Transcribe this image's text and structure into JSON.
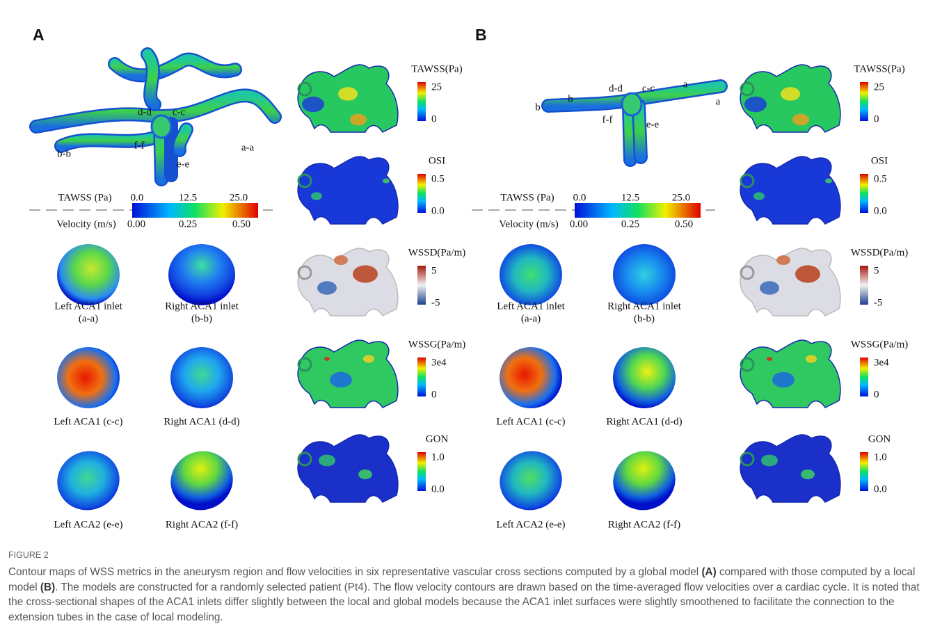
{
  "panels": [
    {
      "label": "A",
      "vessel_labels": [
        "d-d",
        "c-c",
        "b-b",
        "a-a",
        "f-f",
        "e-e"
      ],
      "colorbar": {
        "tawss_label": "TAWSS (Pa)",
        "tawss_ticks": [
          "0.0",
          "12.5",
          "25.0"
        ],
        "velocity_label": "Velocity (m/s)",
        "velocity_ticks": [
          "0.00",
          "0.25",
          "0.50"
        ]
      },
      "cross_sections": [
        {
          "lines": [
            "Left ACA1 inlet",
            "(a-a)"
          ]
        },
        {
          "lines": [
            "Right ACA1 inlet",
            "(b-b)"
          ]
        },
        {
          "lines": [
            "Left ACA1 (c-c)"
          ]
        },
        {
          "lines": [
            "Right ACA1 (d-d)"
          ]
        },
        {
          "lines": [
            "Left ACA2 (e-e)"
          ]
        },
        {
          "lines": [
            "Right ACA2 (f-f)"
          ]
        }
      ],
      "metrics": [
        {
          "name": "TAWSS(Pa)",
          "max": "25",
          "min": "0"
        },
        {
          "name": "OSI",
          "max": "0.5",
          "min": "0.0"
        },
        {
          "name": "WSSD(Pa/m)",
          "max": "5",
          "min": "-5"
        },
        {
          "name": "WSSG(Pa/m)",
          "max": "3e4",
          "min": "0"
        },
        {
          "name": "GON",
          "max": "1.0",
          "min": "0.0"
        }
      ]
    },
    {
      "label": "B",
      "vessel_labels": [
        "d-d",
        "c-c",
        "b",
        "b",
        "a",
        "a",
        "f-f",
        "e-e"
      ],
      "colorbar": {
        "tawss_label": "TAWSS (Pa)",
        "tawss_ticks": [
          "0.0",
          "12.5",
          "25.0"
        ],
        "velocity_label": "Velocity (m/s)",
        "velocity_ticks": [
          "0.00",
          "0.25",
          "0.50"
        ]
      },
      "cross_sections": [
        {
          "lines": [
            "Left ACA1 inlet",
            "(a-a)"
          ]
        },
        {
          "lines": [
            "Right ACA1 inlet",
            "(b-b)"
          ]
        },
        {
          "lines": [
            "Left ACA1 (c-c)"
          ]
        },
        {
          "lines": [
            "Right ACA1 (d-d)"
          ]
        },
        {
          "lines": [
            "Left ACA2 (e-e)"
          ]
        },
        {
          "lines": [
            "Right ACA2 (f-f)"
          ]
        }
      ],
      "metrics": [
        {
          "name": "TAWSS(Pa)",
          "max": "25",
          "min": "0"
        },
        {
          "name": "OSI",
          "max": "0.5",
          "min": "0.0"
        },
        {
          "name": "WSSD(Pa/m)",
          "max": "5",
          "min": "-5"
        },
        {
          "name": "WSSG(Pa/m)",
          "max": "3e4",
          "min": "0"
        },
        {
          "name": "GON",
          "max": "1.0",
          "min": "0.0"
        }
      ]
    }
  ],
  "caption": {
    "figure_label": "FIGURE 2",
    "segments": [
      {
        "text": "Contour maps of WSS metrics in the aneurysm region and flow velocities in six representative vascular cross sections computed by a global model ",
        "bold": false
      },
      {
        "text": "(A)",
        "bold": true
      },
      {
        "text": " compared with those computed by a local model ",
        "bold": false
      },
      {
        "text": "(B)",
        "bold": true
      },
      {
        "text": ". The models are constructed for a randomly selected patient (Pt4). The flow velocity contours are drawn based on the time-averaged flow velocities over a cardiac cycle. It is noted that the cross-sectional shapes of the ACA1 inlets differ slightly between the local and global models because the ACA1 inlet surfaces were slightly smoothened to facilitate the connection to the extension tubes in the case of local modeling.",
        "bold": false
      }
    ]
  }
}
